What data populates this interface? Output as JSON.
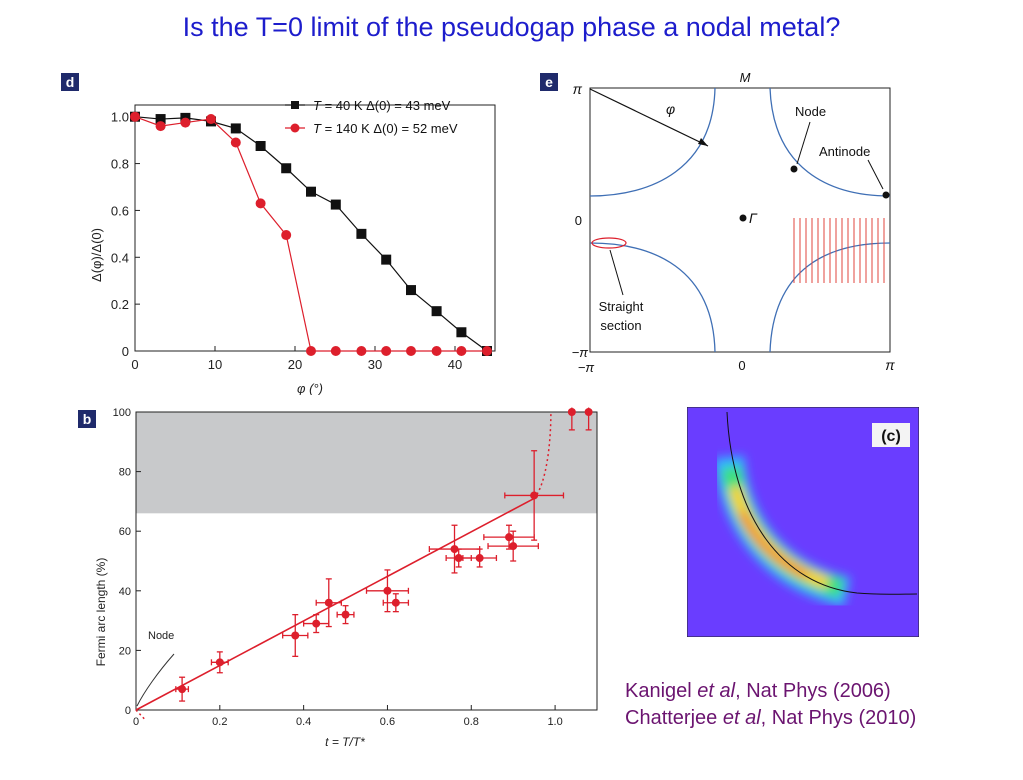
{
  "slide": {
    "title": "Is the T=0 limit of the pseudogap phase a nodal metal?"
  },
  "colors": {
    "title": "#1d1dcc",
    "citation": "#6b1470",
    "panel_label_bg": "#1f2a6b",
    "series_black": "#111111",
    "series_red": "#dd1f2c",
    "contour_blue": "#3f6fb5",
    "shade_grey": "#c8c9cb",
    "heatmap_bg": "#6a3dff"
  },
  "panel_d": {
    "label": "d",
    "xaxis_label": "φ (°)",
    "yaxis_label": "Δ(φ)/Δ(0)",
    "legend": [
      {
        "prefix": "T",
        "rest": " = 40 K   Δ(0) = 43 meV"
      },
      {
        "prefix": "T",
        "rest": " = 140 K   Δ(0) = 52 meV"
      }
    ]
  },
  "panel_e": {
    "label": "e",
    "top_label": "M",
    "phi_label": "φ",
    "node_label": "Node",
    "antinode_label": "Antinode",
    "gamma_label": "Γ",
    "straight_label_1": "Straight",
    "straight_label_2": "section",
    "y_ticks": [
      "π",
      "0",
      "−π"
    ],
    "x_ticks": [
      "−π",
      "0",
      "π"
    ]
  },
  "panel_b": {
    "label": "b",
    "xaxis_label": "t = T/T*",
    "yaxis_label": "Fermi arc length (%)",
    "node_label": "Node"
  },
  "panel_c": {
    "label": "(c)"
  },
  "citation": {
    "line1_a": "Kanigel ",
    "line1_b": "et al",
    "line1_c": ", Nat Phys (2006)",
    "line2_a": "Chatterjee ",
    "line2_b": "et al",
    "line2_c": ", Nat Phys (2010)"
  },
  "chart_data": [
    {
      "type": "line",
      "panel": "d",
      "xlabel": "φ (°)",
      "ylabel": "Δ(φ)/Δ(0)",
      "xlim": [
        0,
        45
      ],
      "ylim": [
        0,
        1.05
      ],
      "x_ticks": [
        0,
        10,
        20,
        30,
        40
      ],
      "y_ticks": [
        0,
        0.2,
        0.4,
        0.6,
        0.8,
        1.0
      ],
      "y_tick_labels": [
        "0",
        "0.2",
        "0.4",
        "0.6",
        "0.8",
        "1.0"
      ],
      "legend_position": "top-right",
      "series": [
        {
          "name": "T = 40 K   Δ(0) = 43 meV",
          "marker": "square",
          "color": "#111111",
          "x": [
            0,
            3.2,
            6.3,
            9.5,
            12.6,
            15.7,
            18.9,
            22.0,
            25.1,
            28.3,
            31.4,
            34.5,
            37.7,
            40.8,
            44.0
          ],
          "y": [
            1.0,
            0.99,
            0.995,
            0.98,
            0.95,
            0.875,
            0.78,
            0.68,
            0.625,
            0.5,
            0.39,
            0.26,
            0.17,
            0.08,
            0.0
          ]
        },
        {
          "name": "T = 140 K   Δ(0) = 52 meV",
          "marker": "circle",
          "color": "#dd1f2c",
          "x": [
            0,
            3.2,
            6.3,
            9.5,
            12.6,
            15.7,
            18.9,
            22.0,
            25.1,
            28.3,
            31.4,
            34.5,
            37.7,
            40.8,
            44.0
          ],
          "y": [
            1.0,
            0.96,
            0.975,
            0.99,
            0.89,
            0.63,
            0.495,
            0.0,
            0.0,
            0.0,
            0.0,
            0.0,
            0.0,
            0.0,
            0.0
          ]
        }
      ]
    },
    {
      "type": "scatter",
      "panel": "b",
      "xlabel": "t = T/T*",
      "ylabel": "Fermi arc length (%)",
      "xlim": [
        0,
        1.1
      ],
      "ylim": [
        0,
        100
      ],
      "x_ticks": [
        0,
        0.2,
        0.4,
        0.6,
        0.8,
        1.0
      ],
      "x_tick_labels": [
        "0",
        "0.2",
        "0.4",
        "0.6",
        "0.8",
        "1.0"
      ],
      "y_ticks": [
        0,
        20,
        40,
        60,
        80,
        100
      ],
      "shaded_region_y": [
        66,
        100
      ],
      "fit_line": {
        "x": [
          0,
          0.95
        ],
        "y": [
          0,
          71
        ]
      },
      "series": [
        {
          "name": "data",
          "color": "#dd1f2c",
          "points": [
            {
              "x": 0.11,
              "y": 7,
              "xerr": 0.015,
              "yerr": 4
            },
            {
              "x": 0.2,
              "y": 16,
              "xerr": 0.02,
              "yerr": 3.5
            },
            {
              "x": 0.38,
              "y": 25,
              "xerr": 0.03,
              "yerr": 7
            },
            {
              "x": 0.43,
              "y": 29,
              "xerr": 0.03,
              "yerr": 3
            },
            {
              "x": 0.46,
              "y": 36,
              "xerr": 0.03,
              "yerr": 8
            },
            {
              "x": 0.5,
              "y": 32,
              "xerr": 0.02,
              "yerr": 3
            },
            {
              "x": 0.6,
              "y": 40,
              "xerr": 0.05,
              "yerr": 7
            },
            {
              "x": 0.62,
              "y": 36,
              "xerr": 0.03,
              "yerr": 3
            },
            {
              "x": 0.76,
              "y": 54,
              "xerr": 0.06,
              "yerr": 8
            },
            {
              "x": 0.77,
              "y": 51,
              "xerr": 0.03,
              "yerr": 3
            },
            {
              "x": 0.82,
              "y": 51,
              "xerr": 0.04,
              "yerr": 3
            },
            {
              "x": 0.89,
              "y": 58,
              "xerr": 0.06,
              "yerr": 4
            },
            {
              "x": 0.9,
              "y": 55,
              "xerr": 0.06,
              "yerr": 5
            },
            {
              "x": 0.95,
              "y": 72,
              "xerr": 0.07,
              "yerr": 15
            },
            {
              "x": 1.04,
              "y": 100,
              "xerr": 0.0,
              "yerr": 6
            },
            {
              "x": 1.08,
              "y": 100,
              "xerr": 0.0,
              "yerr": 6
            }
          ]
        }
      ]
    }
  ]
}
